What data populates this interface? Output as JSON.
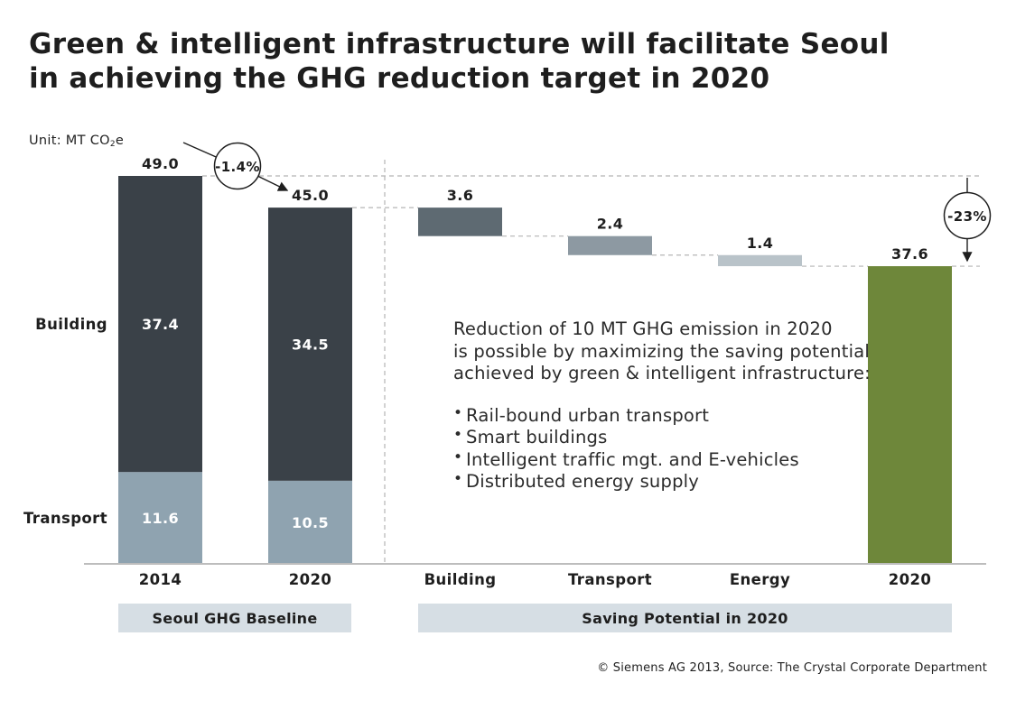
{
  "title": {
    "line1": "Green & intelligent infrastructure will facilitate Seoul",
    "line2": "in achieving the GHG reduction target in 2020"
  },
  "unit": {
    "prefix": "Unit: MT CO",
    "sub": "2",
    "suffix": "e"
  },
  "chart_data": {
    "type": "bar",
    "subtype": "stacked-waterfall",
    "ylim": [
      0,
      49.0
    ],
    "row_labels": [
      "Building",
      "Transport"
    ],
    "categories": [
      "2014",
      "2020",
      "Building",
      "Transport",
      "Energy",
      "2020"
    ],
    "baseline": [
      {
        "category": "2014",
        "total": "49.0",
        "building": 37.4,
        "building_label": "37.4",
        "transport": 11.6,
        "transport_label": "11.6"
      },
      {
        "category": "2020",
        "total": "45.0",
        "building": 34.5,
        "building_label": "34.5",
        "transport": 10.5,
        "transport_label": "10.5"
      }
    ],
    "savings": [
      {
        "category": "Building",
        "value": 3.6,
        "label": "3.6",
        "color": "#5e6a72"
      },
      {
        "category": "Transport",
        "value": 2.4,
        "label": "2.4",
        "color": "#8d99a2"
      },
      {
        "category": "Energy",
        "value": 1.4,
        "label": "1.4",
        "color": "#b9c3c9"
      }
    ],
    "target": {
      "category": "2020",
      "value": 37.6,
      "label": "37.6",
      "color": "#6e873a"
    },
    "annotations": {
      "baseline_change": "-1.4%",
      "total_change": "-23%"
    },
    "groups": [
      "Seoul GHG Baseline",
      "Saving Potential in 2020"
    ],
    "colors": {
      "building": "#3a4148",
      "transport": "#8fa3b0",
      "axis": "#bfbfbf",
      "group_bg": "#d6dee4"
    }
  },
  "note": {
    "intro": [
      "Reduction of 10 MT GHG emission in 2020",
      "is possible by maximizing the saving potential",
      "achieved by green & intelligent infrastructure:"
    ],
    "bullets": [
      "Rail-bound urban transport",
      "Smart buildings",
      "Intelligent traffic mgt. and E-vehicles",
      "Distributed energy supply"
    ]
  },
  "footer": {
    "copyright": "© Siemens AG 2013, Source: The Crystal Corporate Department"
  }
}
